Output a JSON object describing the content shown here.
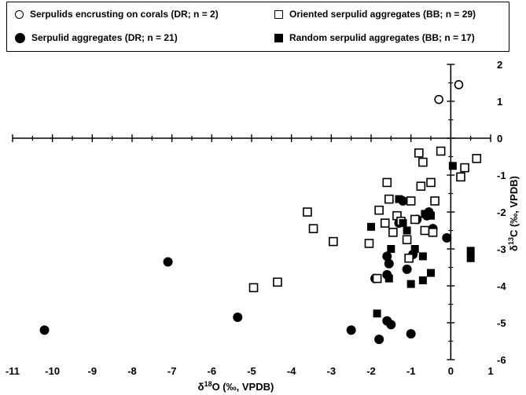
{
  "chart_data": {
    "type": "scatter",
    "title": "",
    "xlabel": "δ18O (‰, VPDB)",
    "ylabel": "δ13C (‰, VPDB)",
    "xlim": [
      -11,
      1
    ],
    "ylim": [
      -6,
      2
    ],
    "x_ticks": [
      -11,
      -10,
      -9,
      -8,
      -7,
      -6,
      -5,
      -4,
      -3,
      -2,
      -1,
      0,
      1
    ],
    "y_ticks": [
      2,
      1,
      0,
      -1,
      -2,
      -3,
      -4,
      -5,
      -6
    ],
    "grid": false,
    "legend_position": "top",
    "series": [
      {
        "name": "Serpulids encrusting on corals (DR; n = 2)",
        "marker": "open-circle",
        "points": [
          {
            "x": -0.3,
            "y": 1.05
          },
          {
            "x": 0.2,
            "y": 1.45
          }
        ]
      },
      {
        "name": "Serpulid aggregates (DR; n = 21)",
        "marker": "filled-circle",
        "points": [
          {
            "x": -10.2,
            "y": -5.2
          },
          {
            "x": -7.1,
            "y": -3.35
          },
          {
            "x": -5.35,
            "y": -4.85
          },
          {
            "x": -2.5,
            "y": -5.2
          },
          {
            "x": -1.8,
            "y": -5.45
          },
          {
            "x": -1.6,
            "y": -4.95
          },
          {
            "x": -1.5,
            "y": -5.05
          },
          {
            "x": -1.0,
            "y": -5.3
          },
          {
            "x": -1.6,
            "y": -3.2
          },
          {
            "x": -1.55,
            "y": -3.4
          },
          {
            "x": -1.6,
            "y": -3.7
          },
          {
            "x": -1.1,
            "y": -3.55
          },
          {
            "x": -0.95,
            "y": -3.15
          },
          {
            "x": -1.9,
            "y": -3.8
          },
          {
            "x": -1.2,
            "y": -1.7
          },
          {
            "x": -0.55,
            "y": -2.0
          },
          {
            "x": -0.6,
            "y": -2.1
          },
          {
            "x": -0.45,
            "y": -2.45
          },
          {
            "x": -0.1,
            "y": -2.7
          },
          {
            "x": -1.3,
            "y": -2.3
          },
          {
            "x": -0.85,
            "y": -2.2
          }
        ]
      },
      {
        "name": "Oriented serpulid aggregates (BB; n = 29)",
        "marker": "open-square",
        "points": [
          {
            "x": -3.6,
            "y": -2.0
          },
          {
            "x": -3.45,
            "y": -2.45
          },
          {
            "x": -2.95,
            "y": -2.8
          },
          {
            "x": -4.35,
            "y": -3.9
          },
          {
            "x": -4.95,
            "y": -4.05
          },
          {
            "x": -2.05,
            "y": -2.85
          },
          {
            "x": -1.8,
            "y": -1.95
          },
          {
            "x": -1.65,
            "y": -2.3
          },
          {
            "x": -1.55,
            "y": -1.65
          },
          {
            "x": -1.35,
            "y": -2.1
          },
          {
            "x": -1.45,
            "y": -2.55
          },
          {
            "x": -1.25,
            "y": -2.25
          },
          {
            "x": -1.1,
            "y": -2.75
          },
          {
            "x": -1.05,
            "y": -3.25
          },
          {
            "x": -1.0,
            "y": -1.7
          },
          {
            "x": -0.9,
            "y": -2.2
          },
          {
            "x": -0.75,
            "y": -1.3
          },
          {
            "x": -0.7,
            "y": -0.65
          },
          {
            "x": -0.5,
            "y": -1.2
          },
          {
            "x": -0.4,
            "y": -1.7
          },
          {
            "x": -0.65,
            "y": -2.5
          },
          {
            "x": -0.8,
            "y": -0.4
          },
          {
            "x": -0.25,
            "y": -0.35
          },
          {
            "x": 0.25,
            "y": -1.05
          },
          {
            "x": 0.35,
            "y": -0.8
          },
          {
            "x": 0.65,
            "y": -0.55
          },
          {
            "x": -0.45,
            "y": -2.55
          },
          {
            "x": -1.6,
            "y": -1.2
          },
          {
            "x": -1.85,
            "y": -3.8
          }
        ]
      },
      {
        "name": "Random serpulid aggregates (BB; n = 17)",
        "marker": "filled-square",
        "points": [
          {
            "x": -2.0,
            "y": -2.4
          },
          {
            "x": -1.2,
            "y": -2.3
          },
          {
            "x": -1.1,
            "y": -2.5
          },
          {
            "x": -1.3,
            "y": -1.65
          },
          {
            "x": -1.5,
            "y": -3.0
          },
          {
            "x": -0.9,
            "y": -3.0
          },
          {
            "x": -0.7,
            "y": -3.2
          },
          {
            "x": -0.5,
            "y": -3.65
          },
          {
            "x": -1.0,
            "y": -3.95
          },
          {
            "x": -0.7,
            "y": -3.85
          },
          {
            "x": -1.55,
            "y": -3.8
          },
          {
            "x": -1.85,
            "y": -4.75
          },
          {
            "x": -0.65,
            "y": -2.05
          },
          {
            "x": -0.5,
            "y": -2.1
          },
          {
            "x": 0.05,
            "y": -0.75
          },
          {
            "x": 0.5,
            "y": -3.05
          },
          {
            "x": 0.5,
            "y": -3.25
          }
        ]
      }
    ]
  }
}
